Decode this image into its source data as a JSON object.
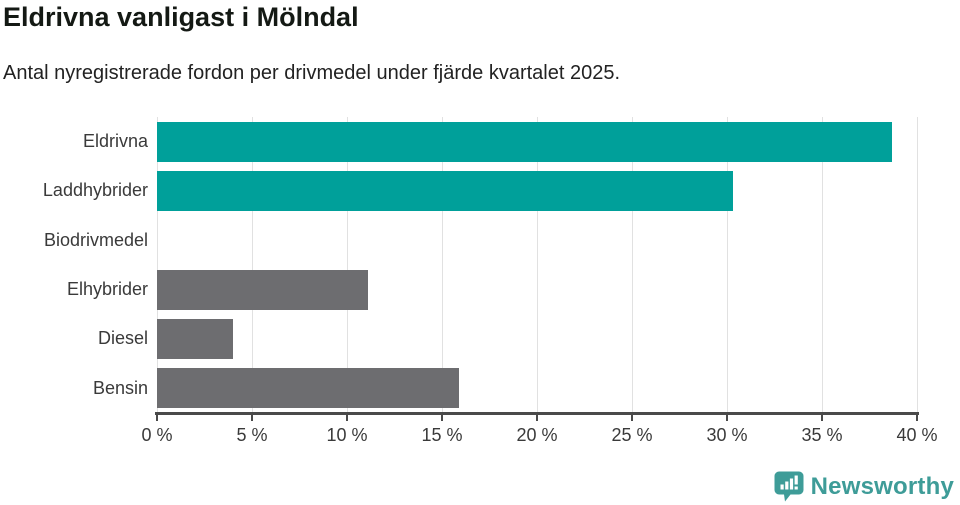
{
  "chart_data": {
    "type": "bar",
    "orientation": "horizontal",
    "title": "Eldrivna vanligast i Mölndal",
    "subtitle": "Antal nyregistrerade fordon per drivmedel under fjärde kvartalet 2025.",
    "categories": [
      "Eldrivna",
      "Laddhybrider",
      "Biodrivmedel",
      "Elhybrider",
      "Diesel",
      "Bensin"
    ],
    "values": [
      38.7,
      30.3,
      0,
      11.1,
      4.0,
      15.9
    ],
    "unit": "%",
    "xlim": [
      0,
      40
    ],
    "tick_step": 5,
    "x_tick_labels": [
      "0 %",
      "5 %",
      "10 %",
      "15 %",
      "20 %",
      "25 %",
      "30 %",
      "35 %",
      "40 %"
    ],
    "grid": true,
    "legend": "none",
    "bar_colors": [
      "#00a09a",
      "#00a09a",
      "#6d6d70",
      "#6d6d70",
      "#6d6d70",
      "#6d6d70"
    ]
  },
  "colors": {
    "accent_teal": "#00a09a",
    "neutral_gray": "#6d6d70",
    "gridline": "#e1e1e1",
    "axis": "#4a4a4a",
    "text_dark": "#141914",
    "text_body": "#3a3a3a",
    "logo_teal": "#3e9c98"
  },
  "logo": {
    "text": "Newsworthy",
    "icon": "newsworthy-chart-bubble-icon"
  }
}
